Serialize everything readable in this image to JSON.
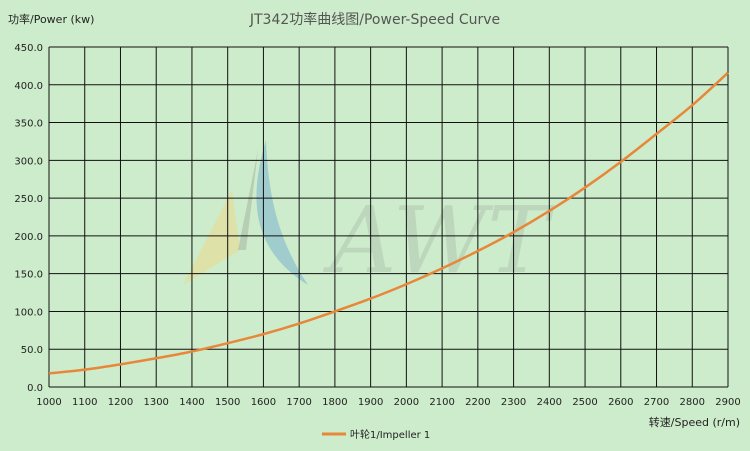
{
  "chart_data": {
    "type": "line",
    "title": "JT342功率曲线图/Power-Speed Curve",
    "ylabel": "功率/Power (kw)",
    "xlabel": "转速/Speed (r/m)",
    "xlim": [
      1000,
      2900
    ],
    "ylim": [
      0,
      450
    ],
    "x_ticks": [
      1000,
      1100,
      1200,
      1300,
      1400,
      1500,
      1600,
      1700,
      1800,
      1900,
      2000,
      2100,
      2200,
      2300,
      2400,
      2500,
      2600,
      2700,
      2800,
      2900
    ],
    "y_ticks": [
      "0.0",
      "50.0",
      "100.0",
      "150.0",
      "200.0",
      "250.0",
      "300.0",
      "350.0",
      "400.0",
      "450.0"
    ],
    "grid": true,
    "legend_position": "bottom-center",
    "series": [
      {
        "name": "叶轮1/Impeller 1",
        "color": "#e8873a",
        "x": [
          1000,
          1100,
          1200,
          1300,
          1400,
          1500,
          1600,
          1700,
          1800,
          1900,
          2000,
          2100,
          2200,
          2300,
          2400,
          2500,
          2600,
          2700,
          2800,
          2900
        ],
        "y": [
          18,
          23,
          30,
          38,
          47,
          58,
          70,
          84,
          100,
          117,
          136,
          157,
          180,
          205,
          233,
          264,
          298,
          335,
          373,
          416
        ]
      }
    ]
  },
  "watermark": {
    "text": "AWT",
    "colors": [
      "#f2d27a",
      "#7cb2cf",
      "#8a9a8a"
    ]
  }
}
